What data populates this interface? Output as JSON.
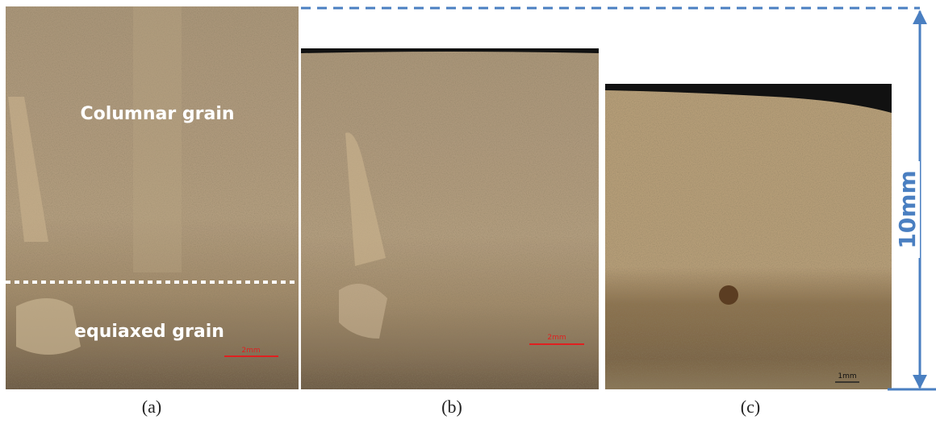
{
  "panels": [
    {
      "label": "(a)",
      "annotations": [
        "Columnar grain",
        "equiaxed grain"
      ],
      "scale_bar": "2mm"
    },
    {
      "label": "(b)",
      "scale_bar": "2mm"
    },
    {
      "label": "(c)",
      "scale_bar": "1mm"
    }
  ],
  "dimension": "10mm"
}
